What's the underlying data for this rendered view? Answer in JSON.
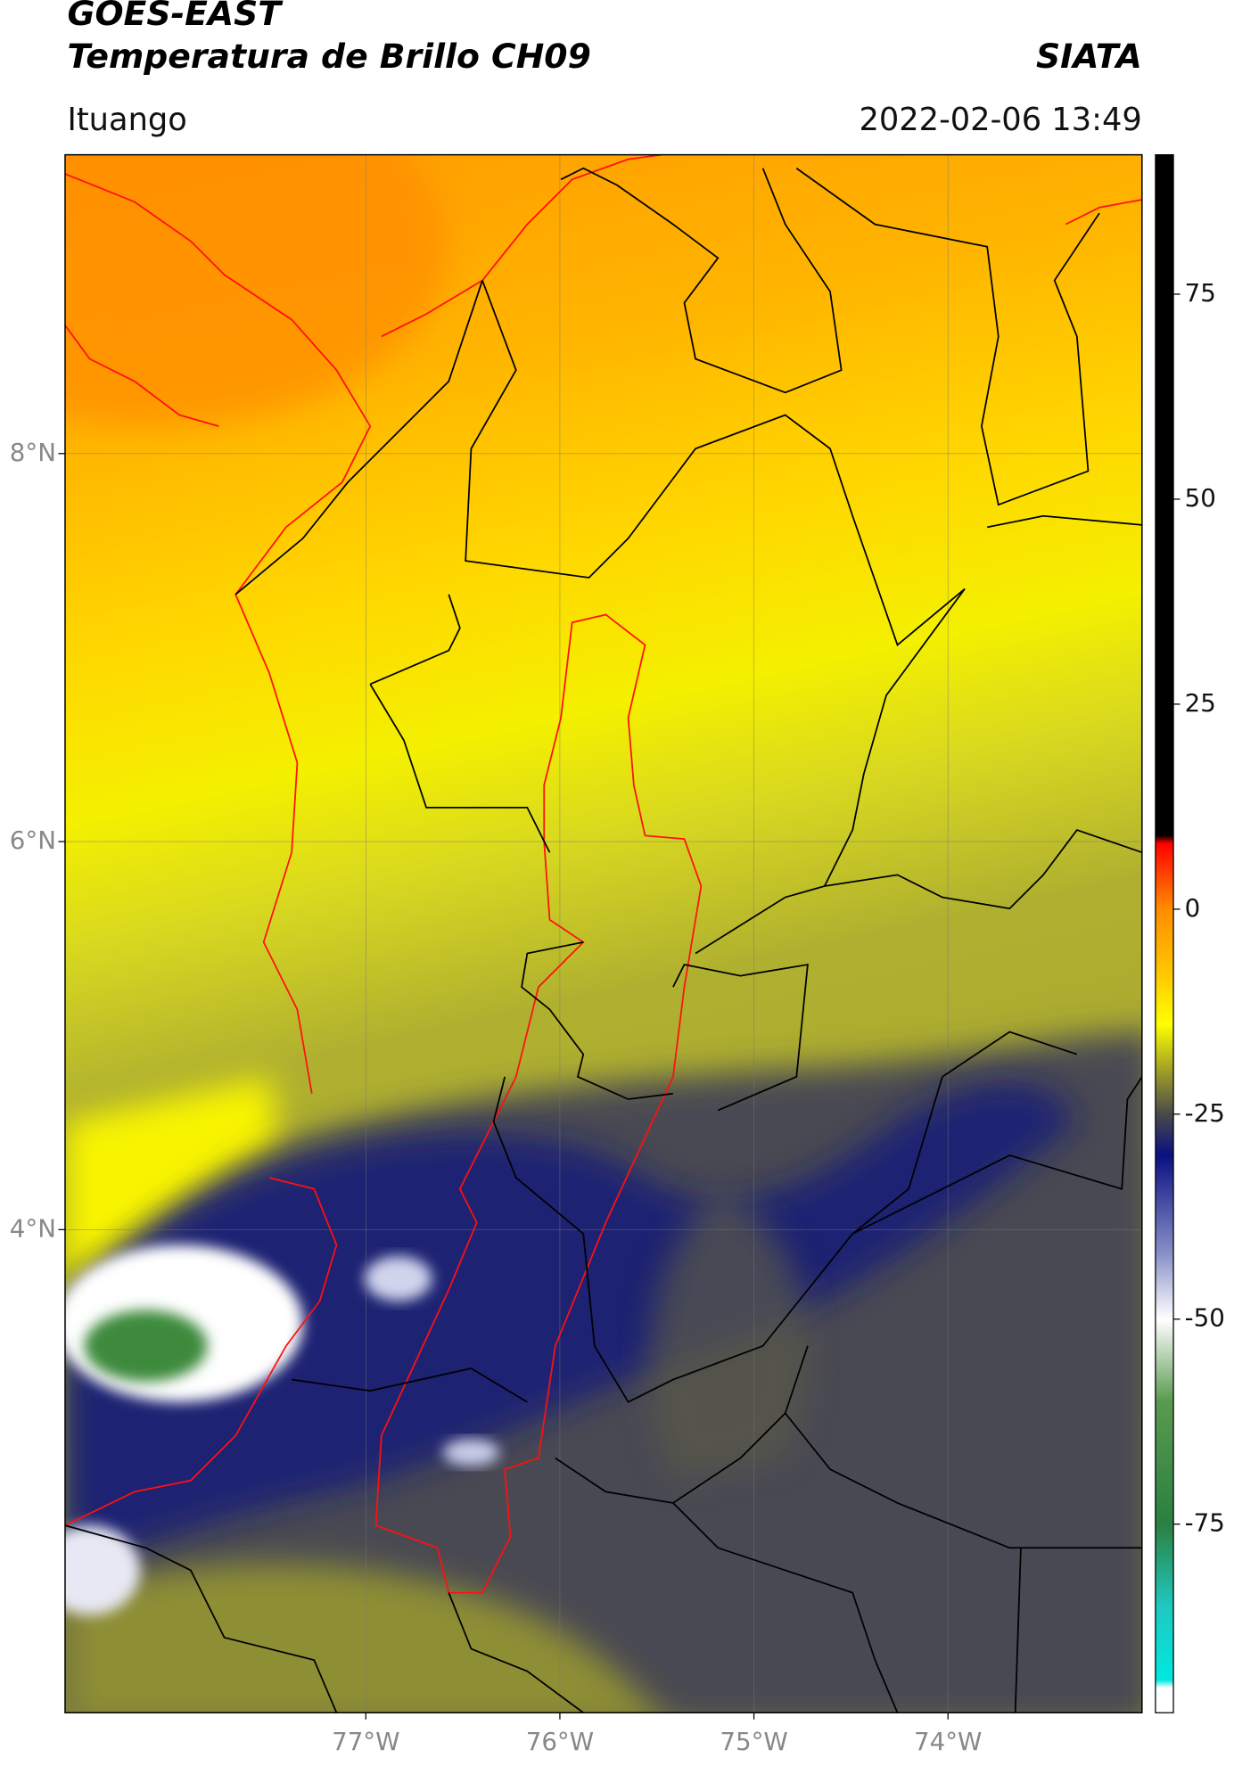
{
  "title": "GOES-EAST",
  "subtitle": "Temperatura de Brillo CH09",
  "agency": "SIATA",
  "region": "Ituango",
  "timestamp": "2022-02-06 13:49",
  "map": {
    "latlim": [
      1.51,
      9.54
    ],
    "lonlim": [
      -78.55,
      -73.0
    ],
    "latticks": [
      {
        "value": 8,
        "label": "8°N"
      },
      {
        "value": 6,
        "label": "6°N"
      },
      {
        "value": 4,
        "label": "4°N"
      }
    ],
    "lonticks": [
      {
        "value": -77,
        "label": "77°W"
      },
      {
        "value": -76,
        "label": "76°W"
      },
      {
        "value": -75,
        "label": "75°W"
      },
      {
        "value": -74,
        "label": "74°W"
      }
    ],
    "grid": true
  },
  "colorbar": {
    "lim": [
      -98,
      92
    ],
    "ticks": [
      75,
      50,
      25,
      0,
      -25,
      -50,
      -75
    ],
    "stops": [
      {
        "value": 92,
        "color": "#000000"
      },
      {
        "value": 9,
        "color": "#000000"
      },
      {
        "value": 8,
        "color": "#ff0000"
      },
      {
        "value": 0,
        "color": "#ff8c00"
      },
      {
        "value": -8,
        "color": "#ffc800"
      },
      {
        "value": -14,
        "color": "#ffff00"
      },
      {
        "value": -20,
        "color": "#9a9a2a"
      },
      {
        "value": -25,
        "color": "#4a4a4a"
      },
      {
        "value": -30,
        "color": "#0a1080"
      },
      {
        "value": -42,
        "color": "#8890c8"
      },
      {
        "value": -50,
        "color": "#ffffff"
      },
      {
        "value": -60,
        "color": "#5a9a50"
      },
      {
        "value": -75,
        "color": "#2a8040"
      },
      {
        "value": -85,
        "color": "#20c8c0"
      },
      {
        "value": -94,
        "color": "#00e8e0"
      },
      {
        "value": -95,
        "color": "#ffffff"
      },
      {
        "value": -98,
        "color": "#ffffff"
      }
    ]
  }
}
